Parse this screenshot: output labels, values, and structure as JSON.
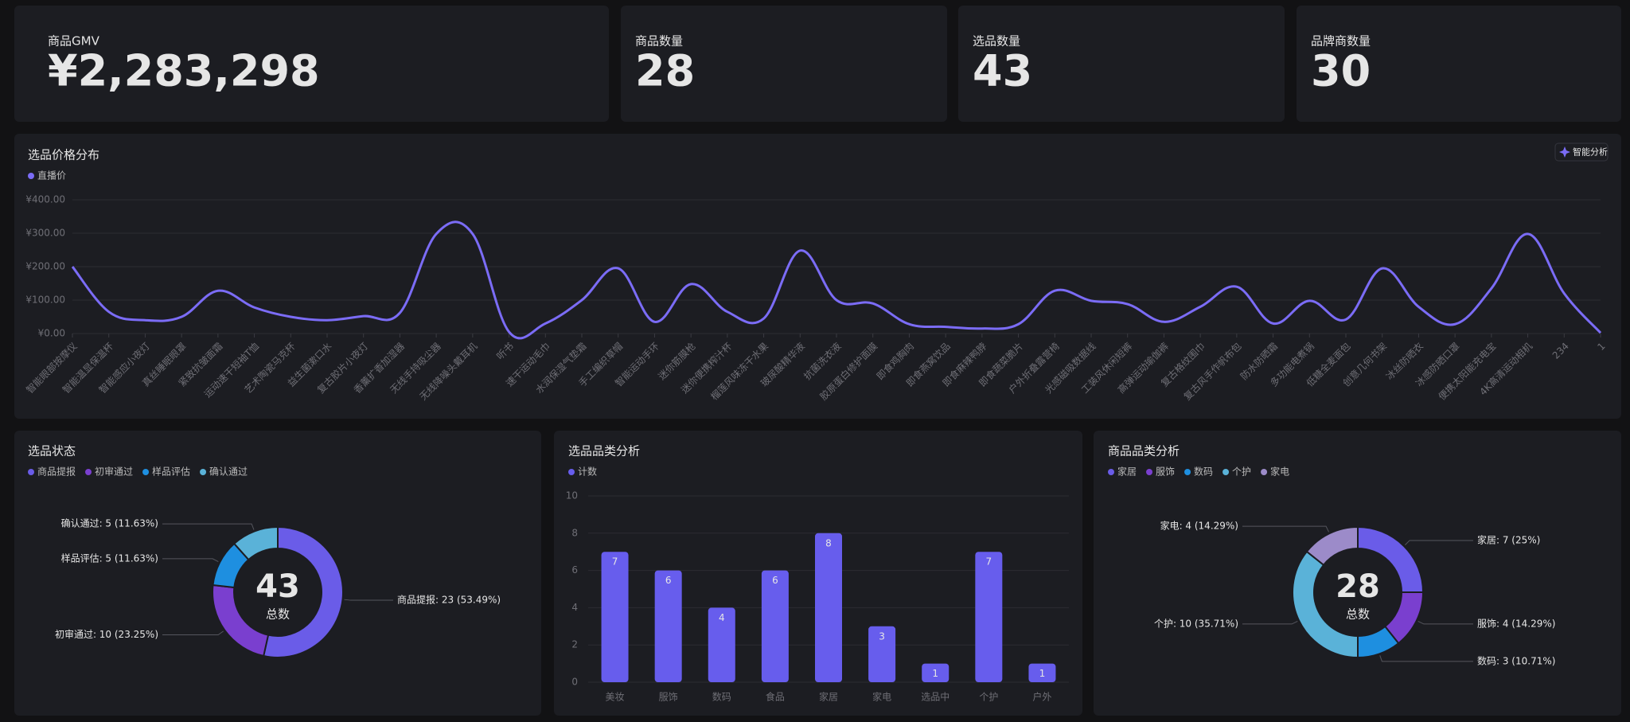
{
  "kpis": [
    {
      "label": "商品GMV",
      "value": "¥2,283,298"
    },
    {
      "label": "商品数量",
      "value": 28
    },
    {
      "label": "选品数量",
      "value": 43
    },
    {
      "label": "品牌商数量",
      "value": 30
    }
  ],
  "price_chart": {
    "type": "line",
    "title": "选品价格分布",
    "button": "智能分析",
    "categories": [
      "智能眼部按摩仪",
      "智能温显保温杯",
      "智能感应小夜灯",
      "真丝睡眠眼罩",
      "紧致抗皱面霜",
      "运动速干短袖T恤",
      "艺术陶瓷马克杯",
      "益生菌漱口水",
      "复古胶片小夜灯",
      "香薰扩香加湿器",
      "无线手持吸尘器",
      "无线降噪头戴耳机",
      "听书",
      "速干运动毛巾",
      "水润保湿气垫霜",
      "手工编织草帽",
      "智能运动手环",
      "迷你筋膜枪",
      "迷你便携榨汁杯",
      "榴莲风味冻干水果",
      "玻尿酸精华液",
      "抗菌洗衣液",
      "胶原蛋白修护面膜",
      "即食鸡胸肉",
      "即食燕窝饮品",
      "即食麻辣鸭脖",
      "即食蔬菜脆片",
      "户外折叠露营椅",
      "光感磁吸数据线",
      "工装风休闲短裤",
      "高弹运动瑜伽裤",
      "复古格纹围巾",
      "复古风手作帆布包",
      "防水防晒霜",
      "多功能电煮锅",
      "低糖全麦面包",
      "创意几何书架",
      "冰丝防晒衣",
      "冰感防晒口罩",
      "便携太阳能充电宝",
      "4K高清运动相机",
      "234",
      "1"
    ],
    "series": [
      {
        "name": "直播价",
        "color": "#7b6cf6",
        "values": [
          200,
          65,
          40,
          50,
          128,
          78,
          50,
          40,
          52,
          62,
          298,
          298,
          5,
          30,
          100,
          195,
          35,
          148,
          65,
          45,
          248,
          100,
          90,
          28,
          20,
          15,
          28,
          128,
          98,
          88,
          35,
          80,
          140,
          30,
          98,
          42,
          195,
          80,
          28,
          135,
          298,
          120,
          2
        ]
      }
    ],
    "ylim": [
      0,
      400
    ],
    "yticks": [
      {
        "value": 0,
        "label": "¥0.00"
      },
      {
        "value": 100,
        "label": "¥100.00"
      },
      {
        "value": 200,
        "label": "¥200.00"
      },
      {
        "value": 300,
        "label": "¥300.00"
      },
      {
        "value": 400,
        "label": "¥400.00"
      }
    ],
    "grid": true
  },
  "status_chart": {
    "type": "pie",
    "title": "选品状态",
    "categories": [
      "商品提报",
      "初审通过",
      "样品评估",
      "确认通过"
    ],
    "values": [
      23,
      10,
      5,
      5
    ],
    "value_labels": [
      "商品提报: 23 (53.49%)",
      "初审通过: 10 (23.25%)",
      "样品评估: 5 (11.63%)",
      "确认通过: 5 (11.63%)"
    ],
    "colors": [
      "#6a5ce8",
      "#7a3fcf",
      "#1e8fe0",
      "#5ab2d8"
    ],
    "total": 43,
    "total_label": "总数"
  },
  "category_chart": {
    "type": "bar",
    "title": "选品品类分析",
    "categories": [
      "美妆",
      "服饰",
      "数码",
      "食品",
      "家居",
      "家电",
      "选品中",
      "个护",
      "户外"
    ],
    "series": [
      {
        "name": "计数",
        "color": "#675ded",
        "values": [
          7,
          6,
          4,
          6,
          8,
          3,
          1,
          7,
          1
        ]
      }
    ],
    "ylim": [
      0,
      10
    ],
    "yticks": [
      0,
      2,
      4,
      6,
      8,
      10
    ],
    "grid": true
  },
  "product_chart": {
    "type": "pie",
    "title": "商品品类分析",
    "categories": [
      "家居",
      "服饰",
      "数码",
      "个护",
      "家电"
    ],
    "values": [
      7,
      4,
      3,
      10,
      4
    ],
    "value_labels": [
      "家居: 7 (25%)",
      "服饰: 4 (14.29%)",
      "数码: 3 (10.71%)",
      "个护: 10 (35.71%)",
      "家电: 4 (14.29%)"
    ],
    "colors": [
      "#6a5ce8",
      "#7a3fcf",
      "#1e8fe0",
      "#5ab2d8",
      "#9c8bc9"
    ],
    "total": 28,
    "total_label": "总数"
  }
}
